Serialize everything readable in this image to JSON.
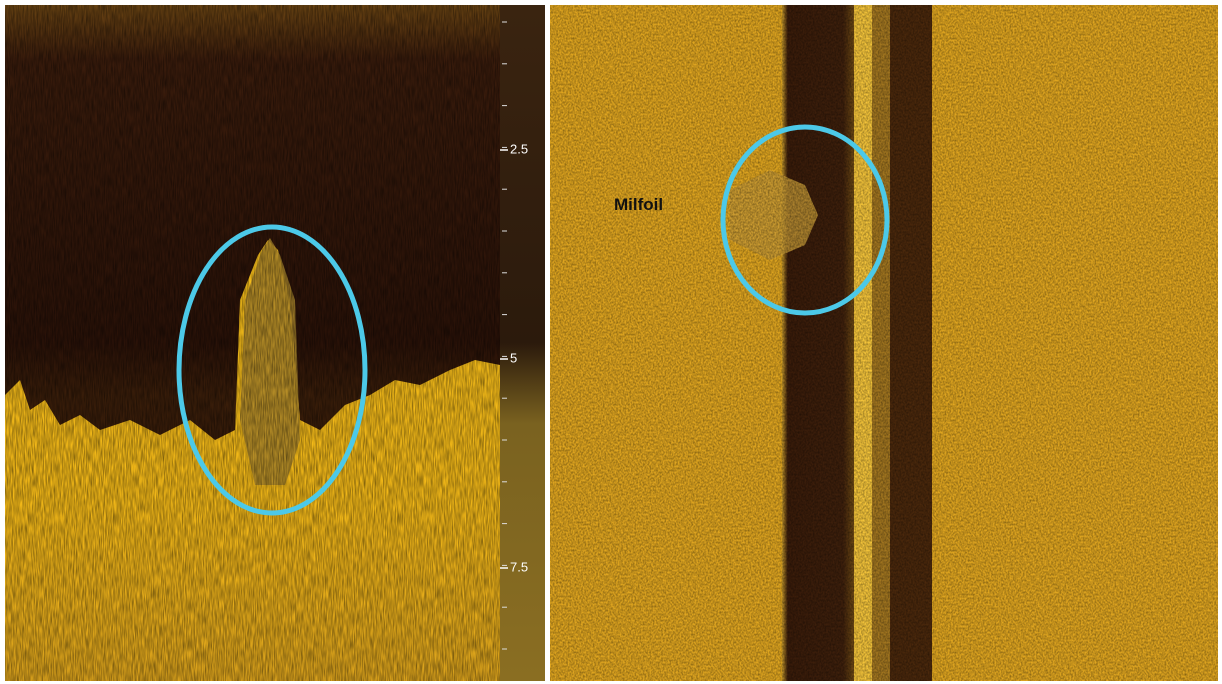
{
  "left_panel": {
    "depth_ticks": [
      "2.5",
      "5",
      "7.5"
    ]
  },
  "right_panel": {
    "label": "Milfoil"
  }
}
